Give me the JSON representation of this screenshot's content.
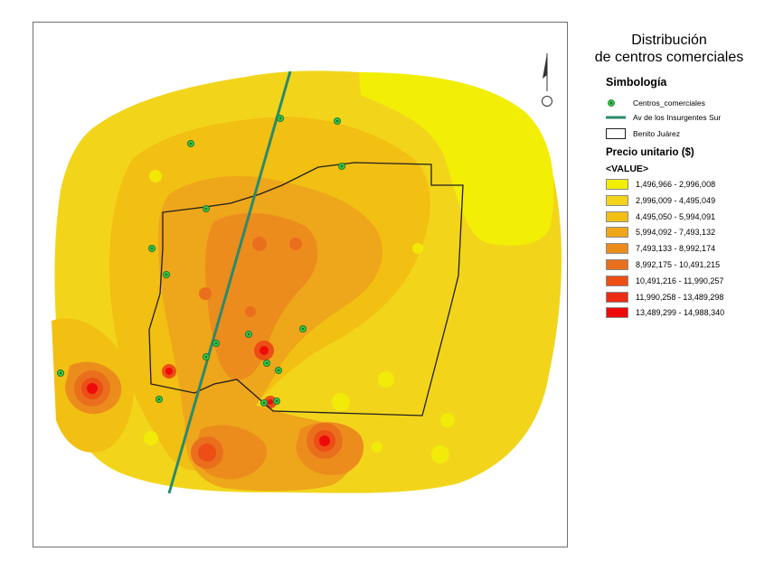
{
  "title_line1": "Distribución",
  "title_line2": "de centros comerciales",
  "legend": {
    "heading": "Simbología",
    "items": [
      {
        "label": "Centros_comerciales",
        "icon": "green-dot-icon"
      },
      {
        "label": "Av de los Insurgentes Sur",
        "icon": "teal-line-icon"
      },
      {
        "label": "Benito Juárez",
        "icon": "black-outline-box-icon"
      }
    ],
    "price_heading": "Precio unitario ($)",
    "value_heading": "<VALUE>",
    "classes": [
      {
        "label": "1,496,966 - 2,996,008",
        "color": "#f2ee06"
      },
      {
        "label": "2,996,009 - 4,495,049",
        "color": "#f2d51b"
      },
      {
        "label": "4,495,050 - 5,994,091",
        "color": "#f2bf13"
      },
      {
        "label": "5,994,092 - 7,493,132",
        "color": "#eea61a"
      },
      {
        "label": "7,493,133 - 8,992,174",
        "color": "#ec8c1d"
      },
      {
        "label": "8,992,175 - 10,491,215",
        "color": "#ea6f1d"
      },
      {
        "label": "10,491,216 - 11,990,257",
        "color": "#ec4e16"
      },
      {
        "label": "11,990,258 - 13,489,298",
        "color": "#ec2b14"
      },
      {
        "label": "13,489,299 - 14,988,340",
        "color": "#ee0a0a"
      }
    ]
  },
  "colors": {
    "shopping_center": "#33c24a",
    "avenue": "#2a8a6c",
    "boundary": "#1f1f1f"
  },
  "north_arrow_icon": "north-arrow-icon"
}
